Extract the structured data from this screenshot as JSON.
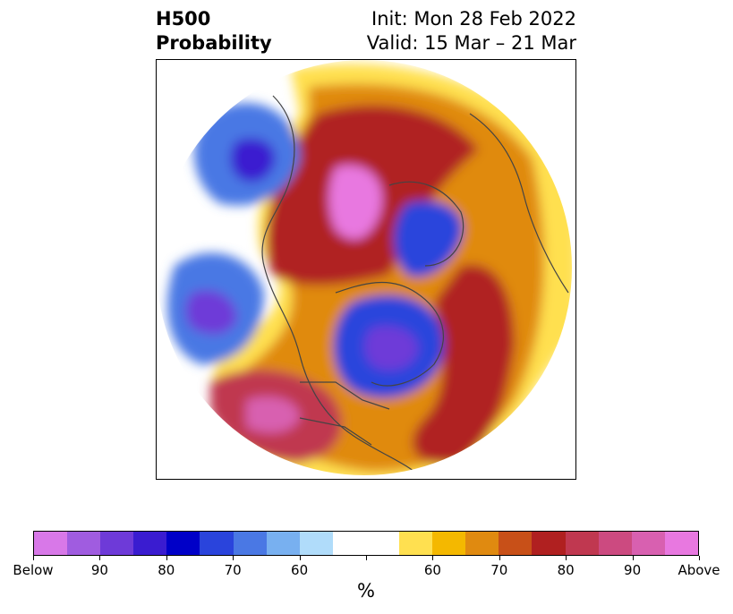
{
  "header": {
    "title_line1": "H500",
    "title_line2": "Probability",
    "init_text": "Init: Mon 28 Feb 2022",
    "valid_text": "Valid: 15 Mar – 21 Mar"
  },
  "colorbar": {
    "colors": [
      "#d878e8",
      "#a05ce0",
      "#6e3ad8",
      "#3a1cd0",
      "#0000c8",
      "#2a44dc",
      "#4a78e4",
      "#78b0f0",
      "#b0dcfa",
      "#ffffff",
      "#ffffff",
      "#ffe050",
      "#f4b800",
      "#e08a10",
      "#c85018",
      "#b02020",
      "#c03850",
      "#cc4a80",
      "#d860b0",
      "#e878e0"
    ],
    "labels": [
      "Below",
      "90",
      "80",
      "70",
      "60",
      "",
      "60",
      "70",
      "80",
      "90",
      "Above"
    ],
    "unit": "%"
  }
}
